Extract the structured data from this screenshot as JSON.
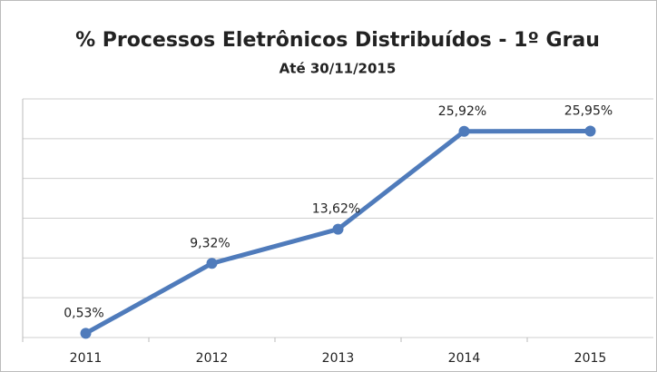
{
  "chart_data": {
    "type": "line",
    "title": "% Processos Eletrônicos Distribuídos  - 1º Grau",
    "subtitle": "Até 30/11/2015",
    "categories": [
      "2011",
      "2012",
      "2013",
      "2014",
      "2015"
    ],
    "series": [
      {
        "name": "% Processos Eletrônicos",
        "color": "#4f7bbb",
        "values": [
          0.53,
          9.32,
          13.62,
          25.92,
          25.95
        ],
        "value_labels": [
          "0,53%",
          "9,32%",
          "13,62%",
          "25,92%",
          "25,95%"
        ]
      }
    ],
    "ylim": [
      0,
      30
    ],
    "yticks": [
      0,
      5,
      10,
      15,
      20,
      25,
      30
    ],
    "grid": true
  }
}
